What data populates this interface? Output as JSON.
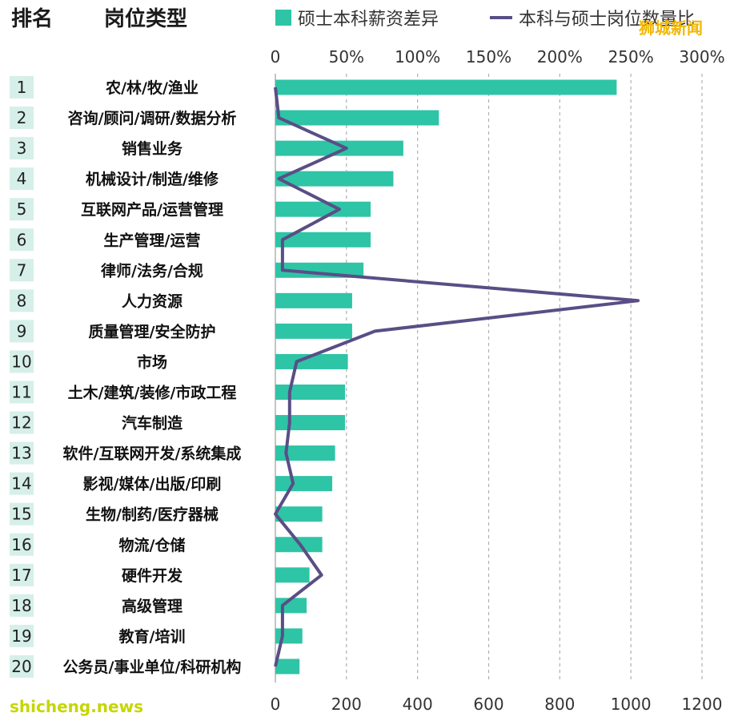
{
  "header": {
    "rank_label": "排名",
    "category_label": "岗位类型"
  },
  "legend": {
    "bar_label": "硕士本科薪资差异",
    "line_label": "本科与硕士岗位数量比"
  },
  "watermarks": {
    "top_right": "狮城新闻",
    "bottom_left": "shicheng.news"
  },
  "colors": {
    "bar": "#2ec4a6",
    "line": "#5a4e86",
    "rank_bg": "#d6efe9",
    "grid": "#b0b0b0",
    "wm_top": "#f2b705",
    "wm_bottom": "#c6d600"
  },
  "chart_data": {
    "type": "bar",
    "categories": [
      "农/林/牧/渔业",
      "咨询/顾问/调研/数据分析",
      "销售业务",
      "机械设计/制造/维修",
      "互联网产品/运营管理",
      "生产管理/运营",
      "律师/法务/合规",
      "人力资源",
      "质量管理/安全防护",
      "市场",
      "土木/建筑/装修/市政工程",
      "汽车制造",
      "软件/互联网开发/系统集成",
      "影视/媒体/出版/印刷",
      "生物/制药/医疗器械",
      "物流/仓储",
      "硬件开发",
      "高级管理",
      "教育/培训",
      "公务员/事业单位/科研机构"
    ],
    "ranks": [
      "1",
      "2",
      "3",
      "4",
      "5",
      "6",
      "7",
      "8",
      "9",
      "10",
      "11",
      "12",
      "13",
      "14",
      "15",
      "16",
      "17",
      "18",
      "19",
      "20"
    ],
    "series": [
      {
        "name": "硕士本科薪资差异",
        "axis": "top",
        "type": "bar",
        "values": [
          240,
          115,
          90,
          83,
          67,
          67,
          62,
          54,
          54,
          51,
          49,
          49,
          42,
          40,
          33,
          33,
          24,
          22,
          19,
          17
        ]
      },
      {
        "name": "本科与硕士岗位数量比",
        "axis": "bottom",
        "type": "line",
        "values": [
          0,
          10,
          200,
          10,
          180,
          20,
          20,
          1020,
          280,
          60,
          40,
          40,
          30,
          50,
          0,
          70,
          130,
          20,
          20,
          0
        ]
      }
    ],
    "top_axis": {
      "ticks": [
        "0",
        "50%",
        "100%",
        "150%",
        "200%",
        "250%",
        "300%"
      ],
      "range": [
        0,
        300
      ]
    },
    "bottom_axis": {
      "ticks": [
        "0",
        "200",
        "400",
        "600",
        "800",
        "1000",
        "1200"
      ],
      "range": [
        0,
        1200
      ]
    },
    "grid": "vertical dashed"
  }
}
